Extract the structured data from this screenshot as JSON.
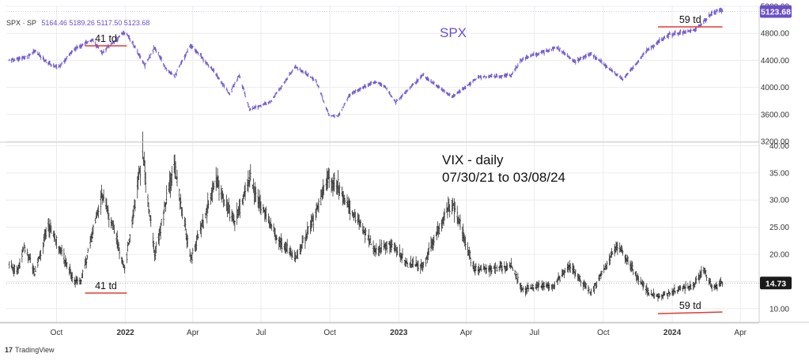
{
  "header": {
    "symbol": "SPX · SP",
    "ohlc": "5164.46  5189.26  5117.50  5123.68"
  },
  "brand": {
    "logo": "17",
    "name": "TradingView"
  },
  "chart_data": [
    {
      "type": "line",
      "series": [
        {
          "name": "SPX",
          "values_by_date": [
            [
              "2021-07-30",
              4395
            ],
            [
              "2021-08-20",
              4440
            ],
            [
              "2021-09-02",
              4537
            ],
            [
              "2021-09-20",
              4358
            ],
            [
              "2021-10-04",
              4300
            ],
            [
              "2021-10-25",
              4566
            ],
            [
              "2021-11-18",
              4705
            ],
            [
              "2021-12-01",
              4513
            ],
            [
              "2021-12-27",
              4791
            ],
            [
              "2022-01-03",
              4796
            ],
            [
              "2022-01-27",
              4327
            ],
            [
              "2022-02-09",
              4587
            ],
            [
              "2022-02-24",
              4288
            ],
            [
              "2022-03-08",
              4170
            ],
            [
              "2022-03-29",
              4631
            ],
            [
              "2022-04-25",
              4296
            ],
            [
              "2022-05-20",
              3901
            ],
            [
              "2022-06-02",
              4176
            ],
            [
              "2022-06-16",
              3666
            ],
            [
              "2022-07-14",
              3790
            ],
            [
              "2022-08-16",
              4305
            ],
            [
              "2022-09-12",
              4110
            ],
            [
              "2022-09-30",
              3585
            ],
            [
              "2022-10-12",
              3577
            ],
            [
              "2022-10-28",
              3901
            ],
            [
              "2022-11-30",
              4080
            ],
            [
              "2022-12-13",
              4019
            ],
            [
              "2022-12-28",
              3783
            ],
            [
              "2023-02-02",
              4179
            ],
            [
              "2023-03-13",
              3855
            ],
            [
              "2023-04-18",
              4154
            ],
            [
              "2023-05-31",
              4180
            ],
            [
              "2023-06-15",
              4425
            ],
            [
              "2023-07-31",
              4589
            ],
            [
              "2023-08-24",
              4376
            ],
            [
              "2023-09-14",
              4505
            ],
            [
              "2023-10-27",
              4117
            ],
            [
              "2023-11-30",
              4568
            ],
            [
              "2023-12-28",
              4783
            ],
            [
              "2024-01-31",
              4845
            ],
            [
              "2024-02-22",
              5087
            ],
            [
              "2024-03-07",
              5157
            ],
            [
              "2024-03-08",
              5124
            ]
          ]
        }
      ],
      "last_value": "5123.68",
      "title": "SPX",
      "y_ticks": [
        "5200.00",
        "4800.00",
        "4400.00",
        "4000.00",
        "3600.00",
        "3200.00"
      ],
      "ylim": [
        3200,
        5200
      ],
      "annotations": [
        {
          "text": "41 td",
          "from": "2021-11-08",
          "to": "2022-01-03"
        },
        {
          "text": "59 td",
          "from": "2023-12-13",
          "to": "2024-03-08"
        }
      ],
      "grid": true
    },
    {
      "type": "bar",
      "series": [
        {
          "values_by_date": [
            [
              "2021-07-30",
              18.2
            ],
            [
              "2021-08-10",
              16.8
            ],
            [
              "2021-08-19",
              21.6
            ],
            [
              "2021-09-02",
              16.4
            ],
            [
              "2021-09-20",
              25.7
            ],
            [
              "2021-10-04",
              21.3
            ],
            [
              "2021-10-25",
              15.2
            ],
            [
              "2021-11-03",
              15.1
            ],
            [
              "2021-11-26",
              28.6
            ],
            [
              "2021-12-01",
              31.1
            ],
            [
              "2021-12-20",
              22.9
            ],
            [
              "2021-12-31",
              17.2
            ],
            [
              "2022-01-24",
              38.9
            ],
            [
              "2022-02-09",
              19.9
            ],
            [
              "2022-03-07",
              36.5
            ],
            [
              "2022-03-29",
              18.9
            ],
            [
              "2022-05-02",
              33.4
            ],
            [
              "2022-05-27",
              25.7
            ],
            [
              "2022-06-16",
              34.0
            ],
            [
              "2022-07-22",
              23.0
            ],
            [
              "2022-08-16",
              19.1
            ],
            [
              "2022-09-06",
              25.5
            ],
            [
              "2022-09-29",
              34.0
            ],
            [
              "2022-10-13",
              32.2
            ],
            [
              "2022-11-30",
              20.6
            ],
            [
              "2022-12-20",
              22.0
            ],
            [
              "2023-01-13",
              18.3
            ],
            [
              "2023-02-02",
              17.9
            ],
            [
              "2023-03-13",
              30.0
            ],
            [
              "2023-04-12",
              17.0
            ],
            [
              "2023-05-31",
              17.9
            ],
            [
              "2023-06-15",
              13.5
            ],
            [
              "2023-07-27",
              14.4
            ],
            [
              "2023-08-18",
              17.9
            ],
            [
              "2023-09-14",
              12.8
            ],
            [
              "2023-10-20",
              21.7
            ],
            [
              "2023-11-30",
              12.9
            ],
            [
              "2023-12-13",
              12.2
            ],
            [
              "2024-01-31",
              14.4
            ],
            [
              "2024-02-13",
              17.2
            ],
            [
              "2024-02-23",
              13.8
            ],
            [
              "2024-03-08",
              14.73
            ]
          ]
        }
      ],
      "last_value": "14.73",
      "title": "VIX - daily",
      "subtitle": "07/30/21 to 03/08/24",
      "y_ticks": [
        "40.00",
        "35.00",
        "30.00",
        "25.00",
        "20.00",
        "15.00",
        "10.00"
      ],
      "ylim": [
        7.5,
        40.5
      ],
      "annotations": [
        {
          "text": "41 td",
          "from": "2021-11-08",
          "to": "2022-01-03"
        },
        {
          "text": "59 td",
          "from": "2023-12-13",
          "to": "2024-03-08"
        }
      ],
      "grid": true
    }
  ],
  "x_axis": {
    "ticks": [
      [
        "Oct",
        "2021-10-01",
        false
      ],
      [
        "2022",
        "2022-01-01",
        true
      ],
      [
        "Apr",
        "2022-04-01",
        false
      ],
      [
        "Jul",
        "2022-07-01",
        false
      ],
      [
        "Oct",
        "2022-10-01",
        false
      ],
      [
        "2023",
        "2023-01-01",
        true
      ],
      [
        "Apr",
        "2023-04-01",
        false
      ],
      [
        "Jul",
        "2023-07-01",
        false
      ],
      [
        "Oct",
        "2023-10-01",
        false
      ],
      [
        "2024",
        "2024-01-01",
        true
      ],
      [
        "Apr",
        "2024-04-01",
        false
      ]
    ],
    "range": [
      "2021-07-26",
      "2024-04-24"
    ]
  },
  "colors": {
    "spx": "#6a4fc7",
    "vix": "#1a1a1a",
    "annotation": "#e53935",
    "grid": "#ececec",
    "axis": "#cccccc",
    "tick_text": "#333333"
  }
}
